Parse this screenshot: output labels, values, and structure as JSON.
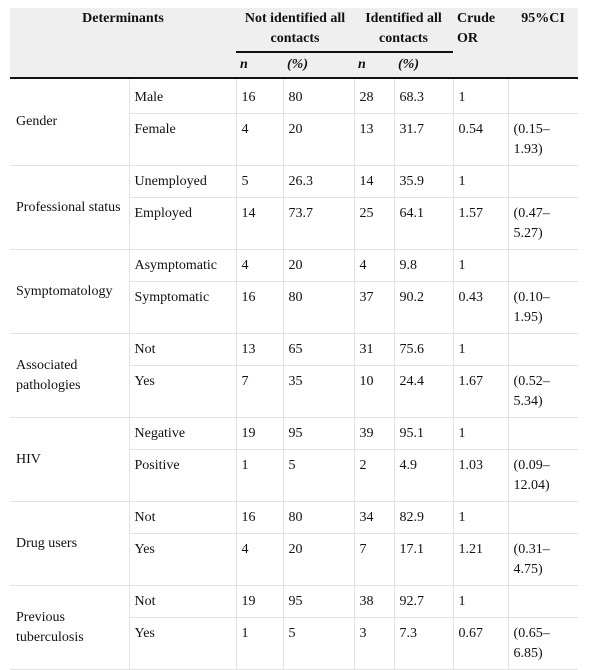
{
  "headers": {
    "determinants": "Determinants",
    "not_identified": "Not identified all contacts",
    "identified": "Identified all contacts",
    "crude_or": "Crude OR",
    "ci": "95%CI",
    "n": "n",
    "pct": "(%)"
  },
  "groups": [
    {
      "name": "Gender",
      "rows": [
        {
          "level": "Male",
          "n1": "16",
          "p1": "80",
          "n2": "28",
          "p2": "68.3",
          "or": "1",
          "ci": ""
        },
        {
          "level": "Female",
          "n1": "4",
          "p1": "20",
          "n2": "13",
          "p2": "31.7",
          "or": "0.54",
          "ci": "(0.15–1.93)"
        }
      ]
    },
    {
      "name": "Professional status",
      "rows": [
        {
          "level": "Unemployed",
          "n1": "5",
          "p1": "26.3",
          "n2": "14",
          "p2": "35.9",
          "or": "1",
          "ci": ""
        },
        {
          "level": "Employed",
          "n1": "14",
          "p1": "73.7",
          "n2": "25",
          "p2": "64.1",
          "or": "1.57",
          "ci": "(0.47–5.27)"
        }
      ]
    },
    {
      "name": "Symptomatology",
      "rows": [
        {
          "level": "Asymptomatic",
          "n1": "4",
          "p1": "20",
          "n2": "4",
          "p2": "9.8",
          "or": "1",
          "ci": ""
        },
        {
          "level": "Symptomatic",
          "n1": "16",
          "p1": "80",
          "n2": "37",
          "p2": "90.2",
          "or": "0.43",
          "ci": "(0.10–1.95)"
        }
      ]
    },
    {
      "name": "Associated pathologies",
      "rows": [
        {
          "level": "Not",
          "n1": "13",
          "p1": "65",
          "n2": "31",
          "p2": "75.6",
          "or": "1",
          "ci": ""
        },
        {
          "level": "Yes",
          "n1": "7",
          "p1": "35",
          "n2": "10",
          "p2": "24.4",
          "or": "1.67",
          "ci": "(0.52–5.34)"
        }
      ]
    },
    {
      "name": "HIV",
      "rows": [
        {
          "level": "Negative",
          "n1": "19",
          "p1": "95",
          "n2": "39",
          "p2": "95.1",
          "or": "1",
          "ci": ""
        },
        {
          "level": "Positive",
          "n1": "1",
          "p1": "5",
          "n2": "2",
          "p2": "4.9",
          "or": "1.03",
          "ci": "(0.09–12.04)"
        }
      ]
    },
    {
      "name": "Drug users",
      "rows": [
        {
          "level": "Not",
          "n1": "16",
          "p1": "80",
          "n2": "34",
          "p2": "82.9",
          "or": "1",
          "ci": ""
        },
        {
          "level": "Yes",
          "n1": "4",
          "p1": "20",
          "n2": "7",
          "p2": "17.1",
          "or": "1.21",
          "ci": "(0.31–4.75)"
        }
      ]
    },
    {
      "name": "Previous tuberculosis",
      "rows": [
        {
          "level": "Not",
          "n1": "19",
          "p1": "95",
          "n2": "38",
          "p2": "92.7",
          "or": "1",
          "ci": ""
        },
        {
          "level": "Yes",
          "n1": "1",
          "p1": "5",
          "n2": "3",
          "p2": "7.3",
          "or": "0.67",
          "ci": "(0.65–6.85)"
        }
      ]
    }
  ]
}
